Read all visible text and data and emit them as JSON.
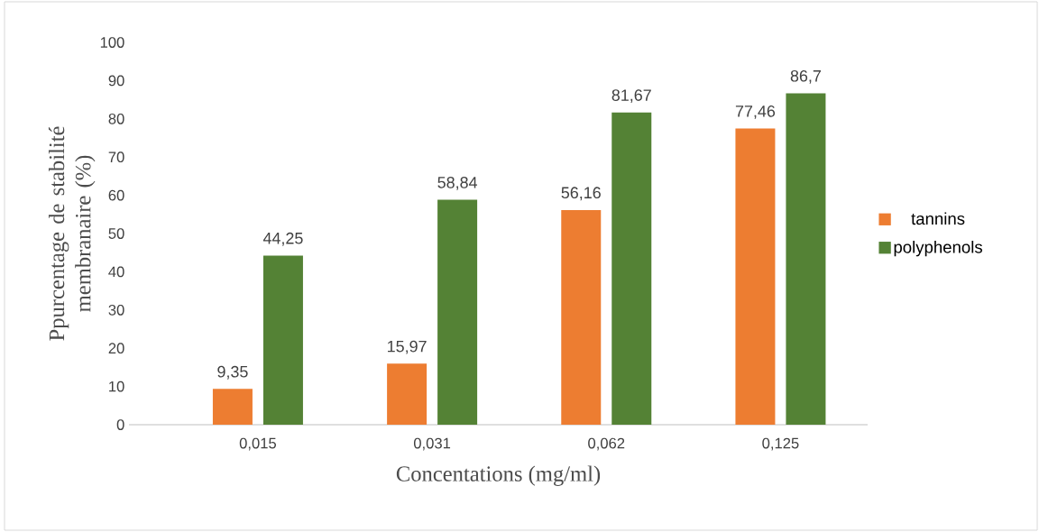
{
  "chart_data": {
    "type": "bar",
    "xlabel": "Concentations (mg/ml)",
    "ylabel": "Ppurcentage de stabilité membranaire (%)",
    "categories": [
      "0,015",
      "0,031",
      "0,062",
      "0,125"
    ],
    "series": [
      {
        "name": "tannins",
        "color": "#ed7d31",
        "values": [
          9.35,
          15.97,
          56.16,
          77.46
        ],
        "value_labels": [
          "9,35",
          "15,97",
          "56,16",
          "77,46"
        ]
      },
      {
        "name": "polyphenols",
        "color": "#548235",
        "values": [
          44.25,
          58.84,
          81.67,
          86.7
        ],
        "value_labels": [
          "44,25",
          "58,84",
          "81,67",
          "86,7"
        ]
      }
    ],
    "ylim": [
      0,
      100
    ],
    "yticks": [
      0,
      10,
      20,
      30,
      40,
      50,
      60,
      70,
      80,
      90,
      100
    ],
    "grid": false,
    "legend": "right"
  }
}
